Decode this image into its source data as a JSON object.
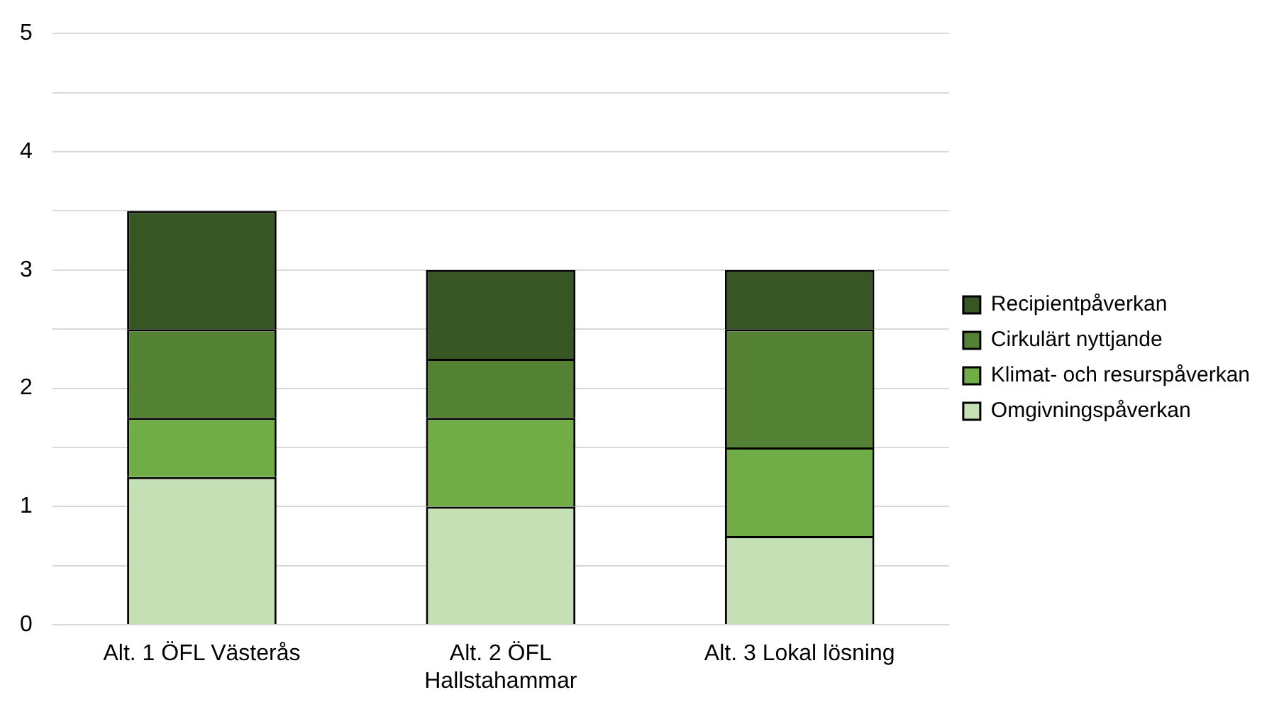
{
  "chart_data": {
    "type": "bar",
    "stacked": true,
    "categories": [
      "Alt. 1 ÖFL Västerås",
      "Alt. 2 ÖFL Hallstahammar",
      "Alt. 3 Lokal lösning"
    ],
    "series": [
      {
        "name": "Omgivningspåverkan",
        "color": "#c5e0b4",
        "values": [
          1.25,
          1.0,
          0.75
        ]
      },
      {
        "name": "Klimat- och resurspåverkan",
        "color": "#70ad47",
        "values": [
          0.5,
          0.75,
          0.75
        ]
      },
      {
        "name": "Cirkulärt nyttjande",
        "color": "#548235",
        "values": [
          0.75,
          0.5,
          1.0
        ]
      },
      {
        "name": "Recipientpåverkan",
        "color": "#375623",
        "values": [
          1.0,
          0.75,
          0.5
        ]
      }
    ],
    "ylim": [
      0,
      5
    ],
    "yticks": [
      0,
      {
        "value": 0.5,
        "label": null
      },
      1,
      {
        "value": 1.5,
        "label": null
      },
      2,
      {
        "value": 2.5,
        "label": null
      },
      3,
      {
        "value": 3.5,
        "label": null
      },
      4,
      {
        "value": 4.5,
        "label": null
      },
      5
    ],
    "grid": true,
    "legend": "right"
  }
}
